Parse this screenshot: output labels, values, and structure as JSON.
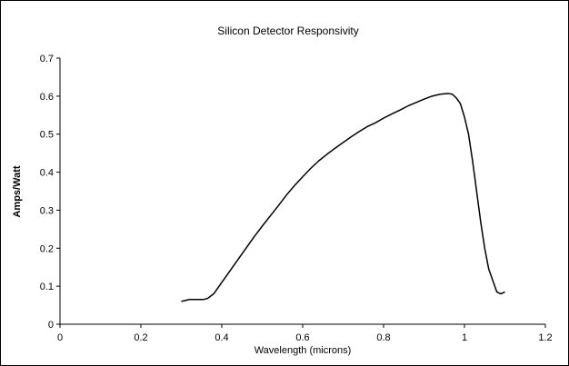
{
  "chart_data": {
    "type": "line",
    "title": "Silicon Detector Responsivity",
    "xlabel": "Wavelength (microns)",
    "ylabel": "Amps/Watt",
    "xlim": [
      0,
      1.2
    ],
    "ylim": [
      0,
      0.7
    ],
    "xticks": [
      "0",
      "0.2",
      "0.4",
      "0.6",
      "0.8",
      "1",
      "1.2"
    ],
    "yticks": [
      "0",
      "0.1",
      "0.2",
      "0.3",
      "0.4",
      "0.5",
      "0.6",
      "0.7"
    ],
    "grid": false,
    "series": [
      {
        "x": [
          0.3,
          0.32,
          0.34,
          0.355,
          0.365,
          0.38,
          0.4,
          0.42,
          0.44,
          0.46,
          0.48,
          0.5,
          0.52,
          0.54,
          0.56,
          0.58,
          0.6,
          0.62,
          0.64,
          0.66,
          0.68,
          0.7,
          0.72,
          0.74,
          0.76,
          0.78,
          0.8,
          0.82,
          0.84,
          0.86,
          0.88,
          0.9,
          0.92,
          0.94,
          0.96,
          0.97,
          0.98,
          0.99,
          1.0,
          1.01,
          1.02,
          1.03,
          1.04,
          1.05,
          1.06,
          1.07,
          1.08,
          1.09,
          1.1
        ],
        "y": [
          0.06,
          0.065,
          0.065,
          0.065,
          0.068,
          0.08,
          0.11,
          0.14,
          0.17,
          0.2,
          0.23,
          0.258,
          0.285,
          0.312,
          0.34,
          0.365,
          0.388,
          0.41,
          0.43,
          0.447,
          0.463,
          0.478,
          0.493,
          0.507,
          0.52,
          0.53,
          0.542,
          0.553,
          0.563,
          0.574,
          0.583,
          0.592,
          0.6,
          0.605,
          0.607,
          0.605,
          0.595,
          0.58,
          0.545,
          0.5,
          0.43,
          0.35,
          0.27,
          0.2,
          0.145,
          0.115,
          0.085,
          0.08,
          0.085
        ]
      }
    ]
  }
}
